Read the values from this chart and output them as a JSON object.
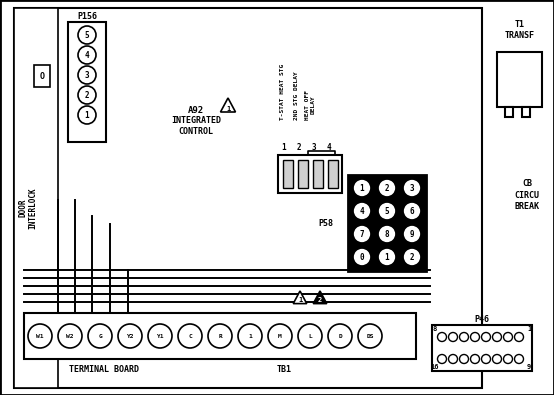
{
  "bg_color": "#ffffff",
  "fg_color": "#000000",
  "p156_label": "P156",
  "p156_pins": [
    "5",
    "4",
    "3",
    "2",
    "1"
  ],
  "a92_label": "A92",
  "a92_sub": "INTEGRATED\nCONTROL",
  "relay_labels": [
    "T-STAT HEAT STG",
    "2ND STG DELAY",
    "HEAT OFF\nDELAY"
  ],
  "relay_numbers": [
    "1",
    "2",
    "3",
    "4"
  ],
  "p58_label": "P58",
  "p58_pins": [
    [
      "3",
      "2",
      "1"
    ],
    [
      "6",
      "5",
      "4"
    ],
    [
      "9",
      "8",
      "7"
    ],
    [
      "2",
      "1",
      "0"
    ]
  ],
  "tb1_pins": [
    "W1",
    "W2",
    "G",
    "Y2",
    "Y1",
    "C",
    "R",
    "1",
    "M",
    "L",
    "D",
    "DS"
  ],
  "p46_label": "P46",
  "t1_label": "T1\nTRANSF",
  "cb_label": "CB\nCIRCU\nBREAK",
  "interlock_label": "DOOR\nINTERLOCK",
  "terminal_board_label": "TERMINAL BOARD",
  "tb1_label": "TB1"
}
